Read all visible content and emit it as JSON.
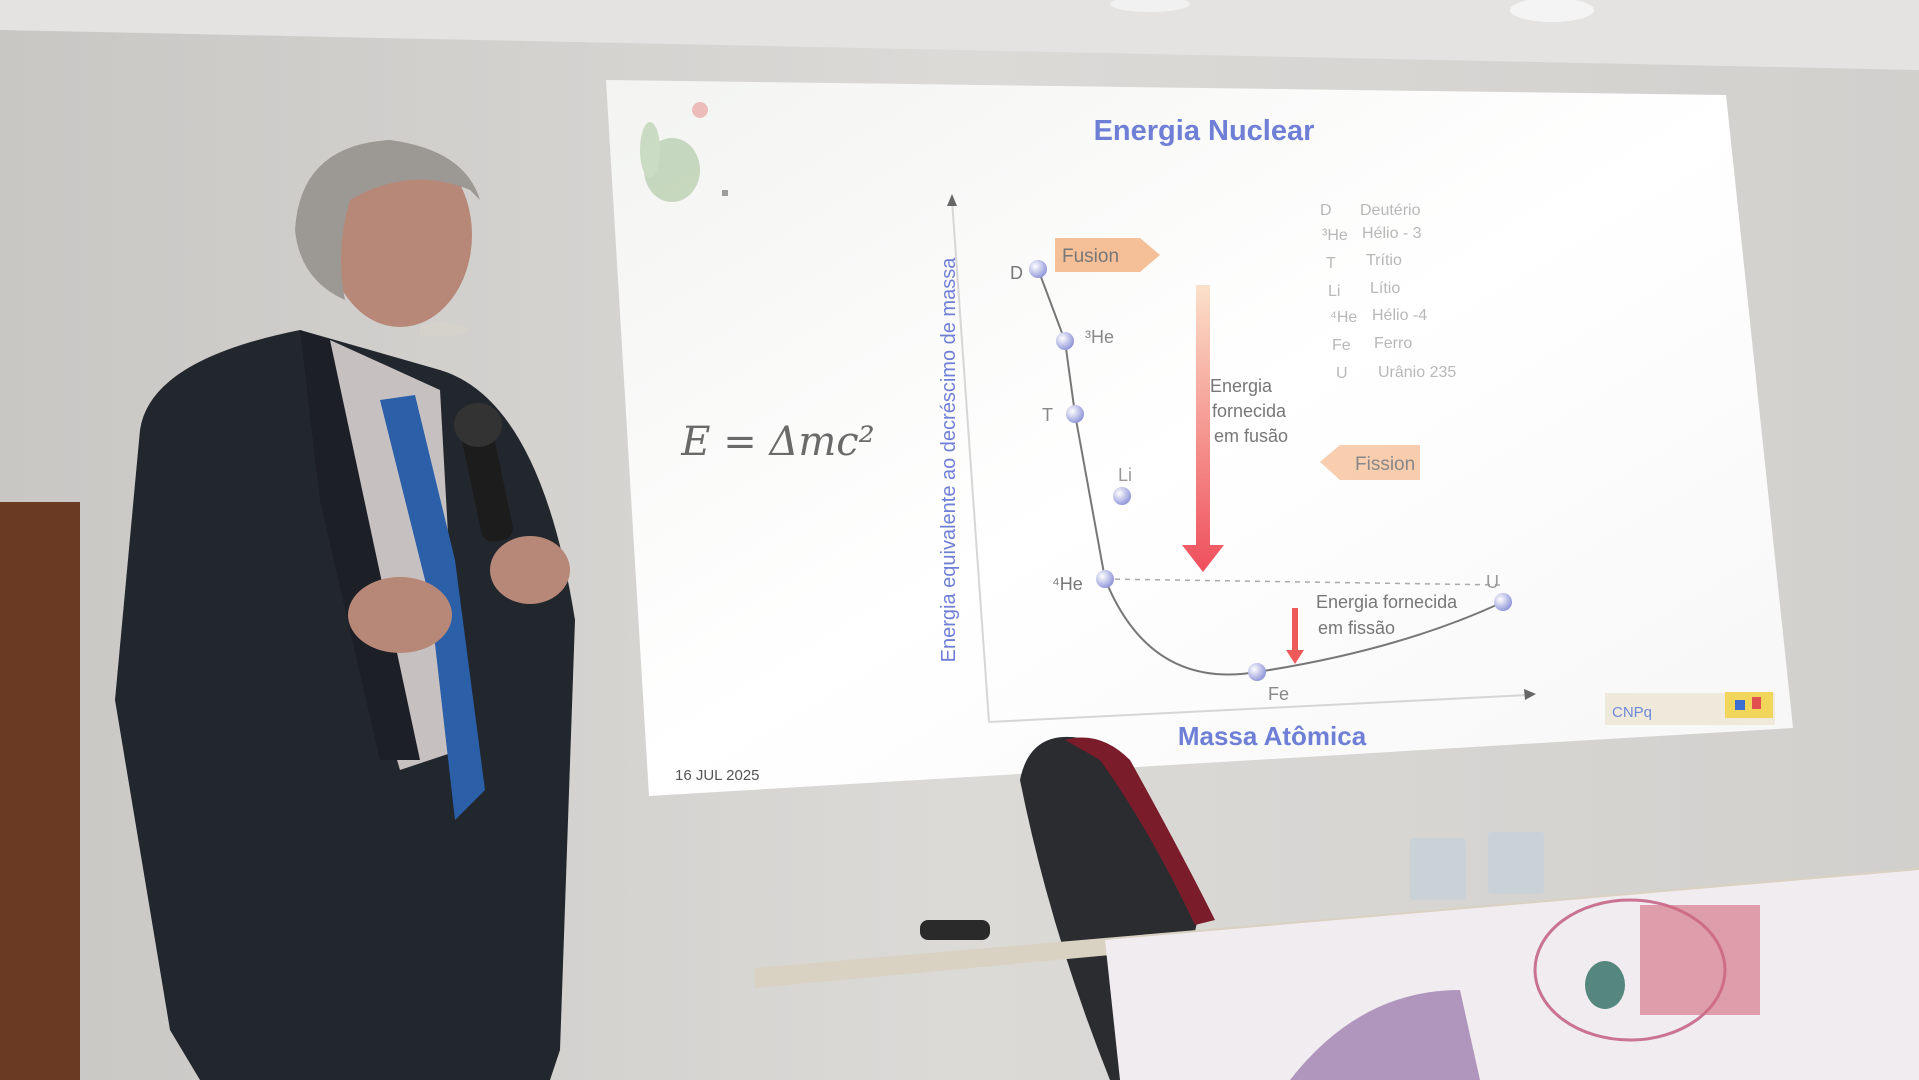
{
  "slide": {
    "title": "Energia Nuclear",
    "formula": "E = Δmc²",
    "y_axis_label": "Energia equivalente ao decréscimo de massa",
    "x_axis_label": "Massa Atômica",
    "date": "16 JUL 2025",
    "fusion_label": "Fusion",
    "fission_label": "Fission",
    "fusion_energy_text": [
      "Energia",
      "fornecida",
      "em fusão"
    ],
    "fission_energy_text": [
      "Energia fornecida",
      "em fissão"
    ],
    "points": {
      "D": "D",
      "He3": "³He",
      "T": "T",
      "Li": "Li",
      "He4": "⁴He",
      "Fe": "Fe",
      "U": "U"
    },
    "legend": [
      {
        "symbol": "D",
        "name": "Deutério"
      },
      {
        "symbol": "³He",
        "name": "Hélio - 3"
      },
      {
        "symbol": "T",
        "name": "Trítio"
      },
      {
        "symbol": "Li",
        "name": "Lítio"
      },
      {
        "symbol": "⁴He",
        "name": "Hélio -4"
      },
      {
        "symbol": "Fe",
        "name": "Ferro"
      },
      {
        "symbol": "U",
        "name": "Urânio 235"
      }
    ],
    "logo_text": "CNPq"
  },
  "colors": {
    "title_blue": "#6f7fd6",
    "arrow_red": "#ee5a5a",
    "fusion_orange": "#f2a66e",
    "wall": "#d6d4d1",
    "suit": "#22262d",
    "tie": "#2b5fa8",
    "chair_red": "#7a1c2a"
  }
}
